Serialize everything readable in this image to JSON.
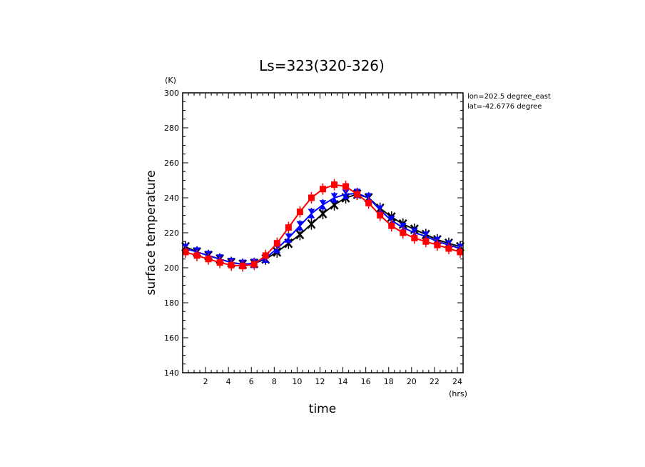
{
  "chart_data": {
    "type": "line",
    "title": "Ls=323(320-326)",
    "xlabel": "time",
    "ylabel": "surface temperature",
    "x_unit": "(hrs)",
    "y_unit": "(K)",
    "xlim": [
      0.0,
      24.5
    ],
    "ylim": [
      140,
      300
    ],
    "x_ticks": [
      2,
      4,
      6,
      8,
      10,
      12,
      14,
      16,
      18,
      20,
      22,
      24
    ],
    "y_ticks": [
      140,
      160,
      180,
      200,
      220,
      240,
      260,
      280,
      300
    ],
    "grid": false,
    "annotations": [
      "lon=202.5 degree_east",
      "lat=-42.6776 degree"
    ],
    "x": [
      0.25,
      1.25,
      2.25,
      3.25,
      4.25,
      5.25,
      6.25,
      7.25,
      8.25,
      9.25,
      10.25,
      11.25,
      12.25,
      13.25,
      14.25,
      15.25,
      16.25,
      17.25,
      18.25,
      19.25,
      20.25,
      21.25,
      22.25,
      23.25,
      24.25
    ],
    "series": [
      {
        "color": "#000000",
        "values": [
          212,
          209,
          207,
          205,
          203,
          202,
          202.5,
          205,
          209,
          214,
          219,
          225,
          231,
          236,
          240,
          242,
          240,
          234,
          229,
          225,
          222,
          219,
          216,
          214,
          212
        ]
      },
      {
        "color": "#0000ff",
        "values": [
          211,
          209,
          207,
          205,
          203,
          202,
          202.5,
          205.5,
          211,
          217,
          224,
          231,
          236,
          240,
          242,
          242.5,
          240,
          233,
          227,
          223,
          220,
          218,
          215,
          213,
          211
        ]
      },
      {
        "color": "#ff0000",
        "values": [
          209,
          207,
          205,
          203,
          201.5,
          201,
          202,
          207,
          214,
          223,
          232,
          240,
          245,
          247.5,
          246.5,
          242,
          237,
          230,
          224,
          220,
          217,
          215,
          213,
          211,
          209
        ]
      }
    ]
  }
}
